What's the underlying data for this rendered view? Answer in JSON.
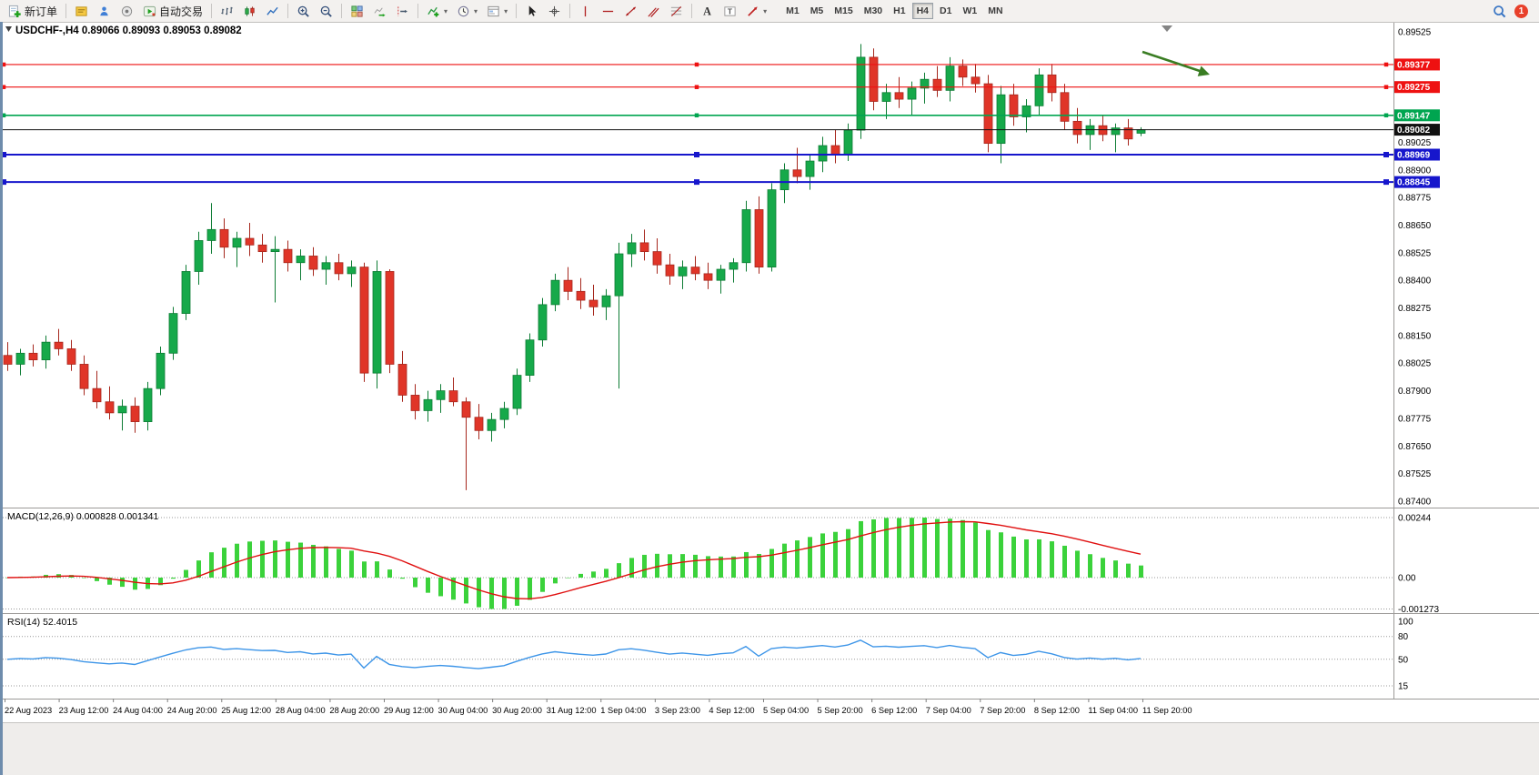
{
  "toolbar": {
    "new_order": "新订单",
    "auto_trading": "自动交易",
    "notification_count": "1",
    "timeframes": {
      "items": [
        "M1",
        "M5",
        "M15",
        "M30",
        "H1",
        "H4",
        "D1",
        "W1",
        "MN"
      ],
      "active": "H4"
    }
  },
  "chart": {
    "title_full": "USDCHF-,H4 0.89066 0.89093 0.89053 0.89082",
    "symbol": "USDCHF-",
    "timeframe": "H4",
    "price_axis": {
      "max": 0.89525,
      "min": 0.874,
      "step": 0.00125,
      "hidden_ticks": [
        0.894,
        0.89275,
        0.8915
      ]
    },
    "levels": [
      {
        "price": 0.89377,
        "label": "0.89377",
        "color": "#ee1111",
        "width": 1.2
      },
      {
        "price": 0.89275,
        "label": "0.89275",
        "color": "#ee1111",
        "width": 1.2
      },
      {
        "price": 0.89147,
        "label": "0.89147",
        "color": "#00a550",
        "width": 1.6
      },
      {
        "price": 0.88969,
        "label": "0.88969",
        "color": "#1616cc",
        "width": 2
      },
      {
        "price": 0.88845,
        "label": "0.88845",
        "color": "#1616cc",
        "width": 2
      }
    ],
    "bid_line": {
      "price": 0.89082,
      "label": "0.89082",
      "color": "#111111"
    },
    "annotation": {
      "type": "trend-arrow",
      "color": "#3a7d23"
    }
  },
  "chart_data": {
    "type": "candlestick",
    "symbol": "USDCHF",
    "period": "H4",
    "ylim": [
      0.874,
      0.89525
    ],
    "ohlc": [
      [
        0.8806,
        0.8812,
        0.8799,
        0.8802
      ],
      [
        0.8802,
        0.8809,
        0.8797,
        0.8807
      ],
      [
        0.8807,
        0.8811,
        0.8801,
        0.8804
      ],
      [
        0.8804,
        0.8815,
        0.88,
        0.8812
      ],
      [
        0.8812,
        0.8818,
        0.8806,
        0.8809
      ],
      [
        0.8809,
        0.8813,
        0.8799,
        0.8802
      ],
      [
        0.8802,
        0.8806,
        0.8788,
        0.8791
      ],
      [
        0.8791,
        0.8799,
        0.8782,
        0.8785
      ],
      [
        0.8785,
        0.8792,
        0.8777,
        0.878
      ],
      [
        0.878,
        0.8786,
        0.8772,
        0.8783
      ],
      [
        0.8783,
        0.8787,
        0.8771,
        0.8776
      ],
      [
        0.8776,
        0.8794,
        0.8772,
        0.8791
      ],
      [
        0.8791,
        0.881,
        0.8788,
        0.8807
      ],
      [
        0.8807,
        0.8828,
        0.8804,
        0.8825
      ],
      [
        0.8825,
        0.8847,
        0.8822,
        0.8844
      ],
      [
        0.8844,
        0.8862,
        0.8838,
        0.8858
      ],
      [
        0.8858,
        0.8875,
        0.8852,
        0.8863
      ],
      [
        0.8863,
        0.8868,
        0.885,
        0.8855
      ],
      [
        0.8855,
        0.8862,
        0.8846,
        0.8859
      ],
      [
        0.8859,
        0.8866,
        0.8851,
        0.8856
      ],
      [
        0.8856,
        0.8861,
        0.8848,
        0.8853
      ],
      [
        0.8853,
        0.886,
        0.883,
        0.8854
      ],
      [
        0.8854,
        0.8858,
        0.8844,
        0.8848
      ],
      [
        0.8848,
        0.8854,
        0.884,
        0.8851
      ],
      [
        0.8851,
        0.8855,
        0.8842,
        0.8845
      ],
      [
        0.8845,
        0.8851,
        0.8838,
        0.8848
      ],
      [
        0.8848,
        0.8852,
        0.884,
        0.8843
      ],
      [
        0.8843,
        0.8849,
        0.8837,
        0.8846
      ],
      [
        0.8846,
        0.8848,
        0.8794,
        0.8798
      ],
      [
        0.8798,
        0.8849,
        0.8791,
        0.8844
      ],
      [
        0.8844,
        0.8845,
        0.8798,
        0.8802
      ],
      [
        0.8802,
        0.8808,
        0.8785,
        0.8788
      ],
      [
        0.8788,
        0.8793,
        0.8777,
        0.8781
      ],
      [
        0.8781,
        0.879,
        0.8776,
        0.8786
      ],
      [
        0.8786,
        0.8793,
        0.878,
        0.879
      ],
      [
        0.879,
        0.8796,
        0.8783,
        0.8785
      ],
      [
        0.8785,
        0.8787,
        0.8745,
        0.8778
      ],
      [
        0.8778,
        0.8784,
        0.8768,
        0.8772
      ],
      [
        0.8772,
        0.878,
        0.8767,
        0.8777
      ],
      [
        0.8777,
        0.8785,
        0.8773,
        0.8782
      ],
      [
        0.8782,
        0.88,
        0.8779,
        0.8797
      ],
      [
        0.8797,
        0.8816,
        0.8794,
        0.8813
      ],
      [
        0.8813,
        0.8832,
        0.881,
        0.8829
      ],
      [
        0.8829,
        0.8843,
        0.8826,
        0.884
      ],
      [
        0.884,
        0.8846,
        0.8831,
        0.8835
      ],
      [
        0.8835,
        0.8841,
        0.8827,
        0.8831
      ],
      [
        0.8831,
        0.8838,
        0.8824,
        0.8828
      ],
      [
        0.8828,
        0.8836,
        0.8822,
        0.8833
      ],
      [
        0.8833,
        0.8857,
        0.8791,
        0.8852
      ],
      [
        0.8852,
        0.8861,
        0.8846,
        0.8857
      ],
      [
        0.8857,
        0.8863,
        0.8849,
        0.8853
      ],
      [
        0.8853,
        0.8859,
        0.8843,
        0.8847
      ],
      [
        0.8847,
        0.8852,
        0.8838,
        0.8842
      ],
      [
        0.8842,
        0.8849,
        0.8836,
        0.8846
      ],
      [
        0.8846,
        0.8851,
        0.884,
        0.8843
      ],
      [
        0.8843,
        0.8848,
        0.8836,
        0.884
      ],
      [
        0.884,
        0.8847,
        0.8834,
        0.8845
      ],
      [
        0.8845,
        0.885,
        0.8839,
        0.8848
      ],
      [
        0.8848,
        0.8876,
        0.8844,
        0.8872
      ],
      [
        0.8872,
        0.8878,
        0.8843,
        0.8846
      ],
      [
        0.8846,
        0.8884,
        0.8844,
        0.8881
      ],
      [
        0.8881,
        0.8893,
        0.8875,
        0.889
      ],
      [
        0.889,
        0.89,
        0.8884,
        0.8887
      ],
      [
        0.8887,
        0.8897,
        0.8881,
        0.8894
      ],
      [
        0.8894,
        0.8905,
        0.8889,
        0.8901
      ],
      [
        0.8901,
        0.8908,
        0.8893,
        0.8897
      ],
      [
        0.8897,
        0.8911,
        0.8894,
        0.8908
      ],
      [
        0.8908,
        0.8947,
        0.8904,
        0.8941
      ],
      [
        0.8941,
        0.8945,
        0.8917,
        0.8921
      ],
      [
        0.8921,
        0.8929,
        0.8913,
        0.8925
      ],
      [
        0.8925,
        0.8932,
        0.8918,
        0.8922
      ],
      [
        0.8922,
        0.893,
        0.8915,
        0.8927
      ],
      [
        0.8927,
        0.8934,
        0.892,
        0.8931
      ],
      [
        0.8931,
        0.8937,
        0.8923,
        0.8926
      ],
      [
        0.8926,
        0.8941,
        0.8921,
        0.8937
      ],
      [
        0.8937,
        0.894,
        0.8928,
        0.8932
      ],
      [
        0.8932,
        0.8938,
        0.8925,
        0.8929
      ],
      [
        0.8929,
        0.8933,
        0.8898,
        0.8902
      ],
      [
        0.8902,
        0.8928,
        0.8893,
        0.8924
      ],
      [
        0.8924,
        0.8929,
        0.891,
        0.8914
      ],
      [
        0.8914,
        0.8922,
        0.8907,
        0.8919
      ],
      [
        0.8919,
        0.8936,
        0.8915,
        0.8933
      ],
      [
        0.8933,
        0.8938,
        0.8921,
        0.8925
      ],
      [
        0.8925,
        0.8929,
        0.8908,
        0.8912
      ],
      [
        0.8912,
        0.8918,
        0.8902,
        0.8906
      ],
      [
        0.8906,
        0.8913,
        0.8899,
        0.891
      ],
      [
        0.891,
        0.8915,
        0.8903,
        0.8906
      ],
      [
        0.8906,
        0.8911,
        0.8898,
        0.8909
      ],
      [
        0.8909,
        0.8913,
        0.8901,
        0.8904
      ],
      [
        0.89066,
        0.89093,
        0.89053,
        0.89082
      ]
    ],
    "time_labels": [
      "22 Aug 2023",
      "23 Aug 12:00",
      "24 Aug 04:00",
      "24 Aug 20:00",
      "25 Aug 12:00",
      "28 Aug 04:00",
      "28 Aug 20:00",
      "29 Aug 12:00",
      "30 Aug 04:00",
      "30 Aug 20:00",
      "31 Aug 12:00",
      "1 Sep 04:00",
      "3 Sep 23:00",
      "4 Sep 12:00",
      "5 Sep 04:00",
      "5 Sep 20:00",
      "6 Sep 12:00",
      "7 Sep 04:00",
      "7 Sep 20:00",
      "8 Sep 12:00",
      "11 Sep 04:00",
      "11 Sep 20:00"
    ],
    "indicators": [
      {
        "name": "MACD",
        "params": [
          12,
          26,
          9
        ],
        "label_text": "MACD(12,26,9) 0.000828 0.001341",
        "axis_labels": [
          "0.00244",
          "0.00",
          "-0.001273"
        ],
        "histogram_color": "#3bd23b",
        "signal_color": "#e01010"
      },
      {
        "name": "RSI",
        "params": [
          14
        ],
        "label_text": "RSI(14) 52.4015",
        "axis_labels": [
          "100",
          "80",
          "50",
          "15"
        ],
        "levels": [
          80,
          50,
          15
        ],
        "line_color": "#3d95e8"
      }
    ]
  },
  "colors": {
    "bull": "#16a94a",
    "bull_edge": "#0d7c34",
    "bear": "#e03528",
    "bear_edge": "#a6271d",
    "background": "#ffffff",
    "toolbar_bg": "#f3f1ef",
    "accent_badge": "#e8402a"
  }
}
